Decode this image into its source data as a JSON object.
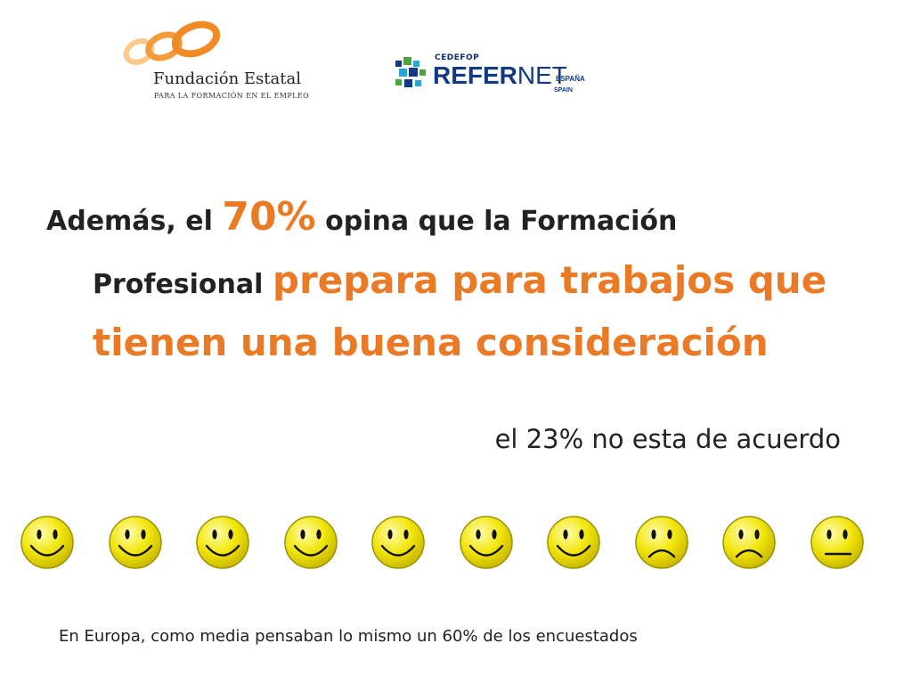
{
  "logos": {
    "fundacion": {
      "name": "Fundación Estatal",
      "tagline": "PARA LA FORMACIÓN EN EL EMPLEO",
      "colors": {
        "rings": "#f08a24",
        "rings_light": "#fbc98a"
      },
      "icon": "interlocking-rings-icon"
    },
    "refernet": {
      "cedefop": "CEDEFOP",
      "refer": "REFER",
      "net": "NET",
      "espana": "ESPAÑA",
      "spain": "SPAIN",
      "colors": {
        "navy": "#123a84",
        "green": "#4aa63c",
        "cyan": "#2aa6d6"
      },
      "icon": "mosaic-squares-icon"
    }
  },
  "headline": {
    "word_ademas": "Además,",
    "word_el": " el ",
    "percent": "70%",
    "rest_line1": " opina que la Formación",
    "profesional": "Profesional ",
    "prepara": "prepara para trabajos que",
    "line3": "tienen una buena consideración"
  },
  "disagree": "el 23% no esta de acuerdo",
  "faces": [
    {
      "mood": "happy",
      "icon": "smiley-happy-icon"
    },
    {
      "mood": "happy",
      "icon": "smiley-happy-icon"
    },
    {
      "mood": "happy",
      "icon": "smiley-happy-icon"
    },
    {
      "mood": "happy",
      "icon": "smiley-happy-icon"
    },
    {
      "mood": "happy",
      "icon": "smiley-happy-icon"
    },
    {
      "mood": "happy",
      "icon": "smiley-happy-icon"
    },
    {
      "mood": "happy",
      "icon": "smiley-happy-icon"
    },
    {
      "mood": "sad",
      "icon": "smiley-sad-icon"
    },
    {
      "mood": "sad",
      "icon": "smiley-sad-icon"
    },
    {
      "mood": "neutral",
      "icon": "smiley-neutral-icon"
    }
  ],
  "colors": {
    "accent_orange": "#ea7a26",
    "text_dark": "#222222",
    "face_yellow": "#f2e60c",
    "face_outline": "#9a9400"
  },
  "footnote": "En Europa, como media pensaban lo mismo un 60% de los encuestados"
}
